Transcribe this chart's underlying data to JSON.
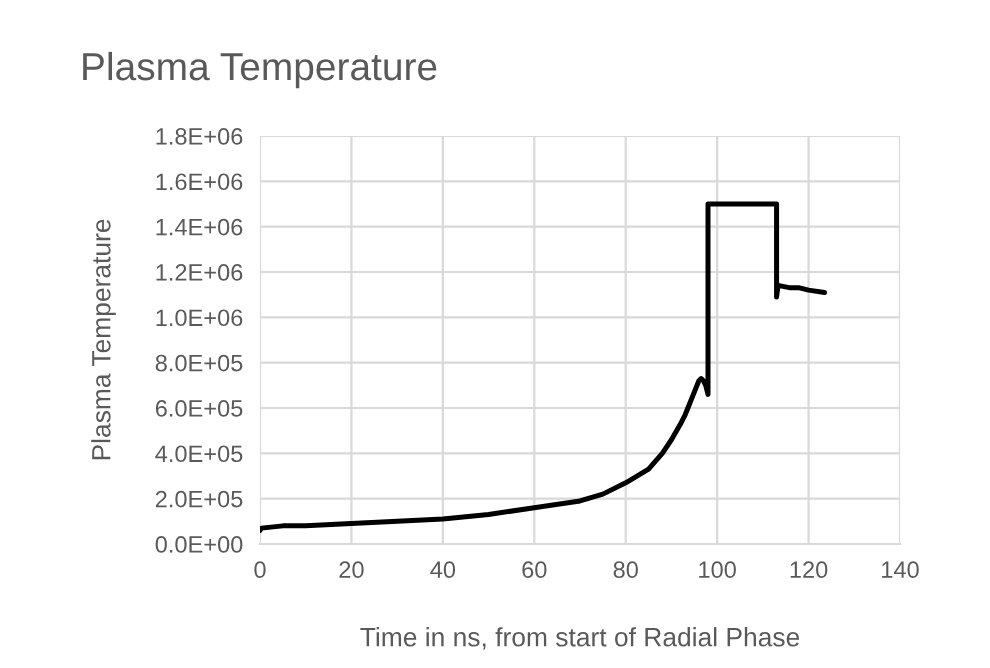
{
  "chart_data": {
    "type": "line",
    "title": "Plasma Temperature",
    "xlabel": "Time in ns, from start of Radial Phase",
    "ylabel": "Plasma Temperature",
    "series": [
      {
        "color": "#000000",
        "x": [
          0,
          0.3,
          5,
          10,
          20,
          30,
          40,
          50,
          60,
          70,
          75,
          80,
          85,
          88,
          90,
          92,
          93,
          94,
          95,
          96,
          96.5,
          97,
          97.5,
          98,
          98,
          105,
          113,
          113,
          113.3,
          113.6,
          116,
          118,
          120,
          123.5
        ],
        "values": [
          60000,
          70000,
          80000,
          80000,
          90000,
          100000,
          110000,
          130000,
          160000,
          190000,
          220000,
          270000,
          330000,
          400000,
          460000,
          530000,
          570000,
          620000,
          670000,
          720000,
          730000,
          720000,
          700000,
          660000,
          1500000,
          1500000,
          1500000,
          1090000,
          1140000,
          1140000,
          1130000,
          1130000,
          1120000,
          1110000
        ]
      }
    ],
    "xlim": [
      0,
      140
    ],
    "xticks": [
      0,
      20,
      40,
      60,
      80,
      100,
      120,
      140
    ],
    "ylim": [
      0,
      1800000
    ],
    "yticks": [
      {
        "value": 0,
        "label": "0.0E+00"
      },
      {
        "value": 200000,
        "label": "2.0E+05"
      },
      {
        "value": 400000,
        "label": "4.0E+05"
      },
      {
        "value": 600000,
        "label": "6.0E+05"
      },
      {
        "value": 800000,
        "label": "8.0E+05"
      },
      {
        "value": 1000000,
        "label": "1.0E+06"
      },
      {
        "value": 1200000,
        "label": "1.2E+06"
      },
      {
        "value": 1400000,
        "label": "1.4E+06"
      },
      {
        "value": 1600000,
        "label": "1.6E+06"
      },
      {
        "value": 1800000,
        "label": "1.8E+06"
      }
    ],
    "grid": true,
    "line_style": "solid",
    "marker": "none"
  }
}
